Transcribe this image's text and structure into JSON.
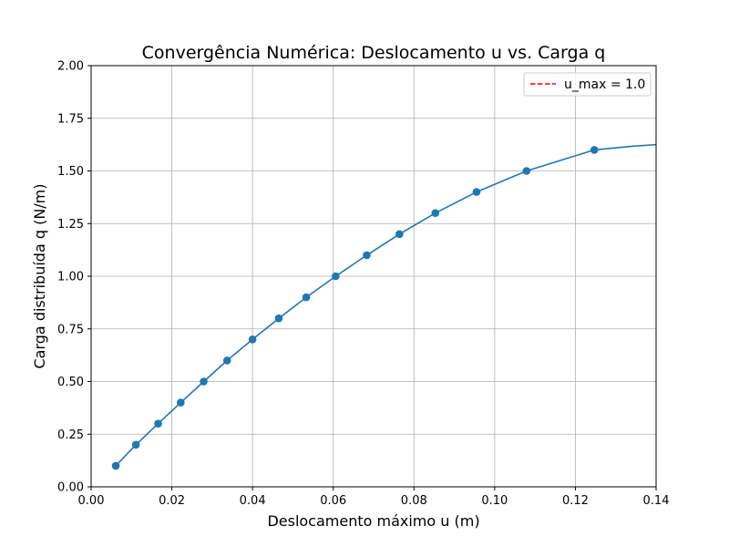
{
  "chart_data": {
    "type": "line",
    "title": "Convergência Numérica: Deslocamento u vs. Carga q",
    "xlabel": "Deslocamento máximo u (m)",
    "ylabel": "Carga distribuída q (N/m)",
    "xlim": [
      0.0,
      0.14
    ],
    "ylim": [
      0.0,
      2.0
    ],
    "xticks": [
      0.0,
      0.02,
      0.04,
      0.06,
      0.08,
      0.1,
      0.12,
      0.14
    ],
    "xtick_labels": [
      "0.00",
      "0.02",
      "0.04",
      "0.06",
      "0.08",
      "0.10",
      "0.12",
      "0.14"
    ],
    "yticks": [
      0.0,
      0.25,
      0.5,
      0.75,
      1.0,
      1.25,
      1.5,
      1.75,
      2.0
    ],
    "ytick_labels": [
      "0.00",
      "0.25",
      "0.50",
      "0.75",
      "1.00",
      "1.25",
      "1.50",
      "1.75",
      "2.00"
    ],
    "grid": true,
    "legend_position": "top-right",
    "series": [
      {
        "color": "#1f77b4",
        "marker": "circle",
        "x": [
          0.0061,
          0.0111,
          0.0166,
          0.0222,
          0.0279,
          0.0337,
          0.04,
          0.0465,
          0.0533,
          0.0606,
          0.0683,
          0.0764,
          0.0853,
          0.0955,
          0.1079,
          0.1247
        ],
        "y": [
          0.1,
          0.2,
          0.3,
          0.4,
          0.5,
          0.6,
          0.7,
          0.8,
          0.9,
          1.0,
          1.1,
          1.2,
          1.3,
          1.4,
          1.5,
          1.6
        ],
        "extension": {
          "x": [
            0.1247,
            0.134,
            0.14
          ],
          "y": [
            1.6,
            1.617,
            1.625
          ]
        }
      }
    ],
    "reference_lines": [
      {
        "name": "u_max = 1.0",
        "color": "#ff0000",
        "style": "dashed",
        "x": 1.0
      }
    ]
  }
}
